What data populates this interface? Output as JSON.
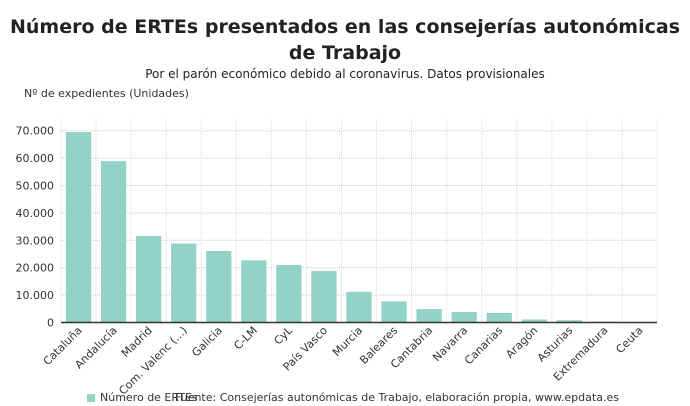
{
  "title": "Número de ERTEs presentados en las consejerías autonómicas de Trabajo",
  "subtitle": "Por el parón económico debido al coronavirus. Datos provisionales",
  "source": "Fuente: Consejerías autonómicas de Trabajo, elaboración propia, www.epdata.es",
  "chart_data": {
    "type": "bar",
    "title": "Número de ERTEs presentados en las consejerías autonómicas de Trabajo",
    "ylabel": "Nº de expedientes (Unidades)",
    "xlabel": "",
    "ylim": [
      0,
      75000
    ],
    "yticks": [
      0,
      10000,
      20000,
      30000,
      40000,
      50000,
      60000,
      70000
    ],
    "ytick_labels": [
      "0",
      "10.000",
      "20.000",
      "30.000",
      "40.000",
      "50.000",
      "60.000",
      "70.000"
    ],
    "grid": true,
    "legend": "bottom-left",
    "categories": [
      "Cataluña",
      "Andalucía",
      "Madrid",
      "Com. Valenc (...)",
      "Galicia",
      "C-LM",
      "CyL",
      "País Vasco",
      "Murcia",
      "Baleares",
      "Cantabria",
      "Navarra",
      "Canarias",
      "Aragón",
      "Asturias",
      "Extremadura",
      "Ceuta"
    ],
    "series": [
      {
        "name": "Número de ERTEs",
        "color": "#93d2c6",
        "values": [
          69500,
          58900,
          31600,
          28800,
          26100,
          22700,
          21000,
          18800,
          11200,
          7700,
          4900,
          3800,
          3500,
          1100,
          850,
          350,
          50
        ]
      }
    ]
  }
}
